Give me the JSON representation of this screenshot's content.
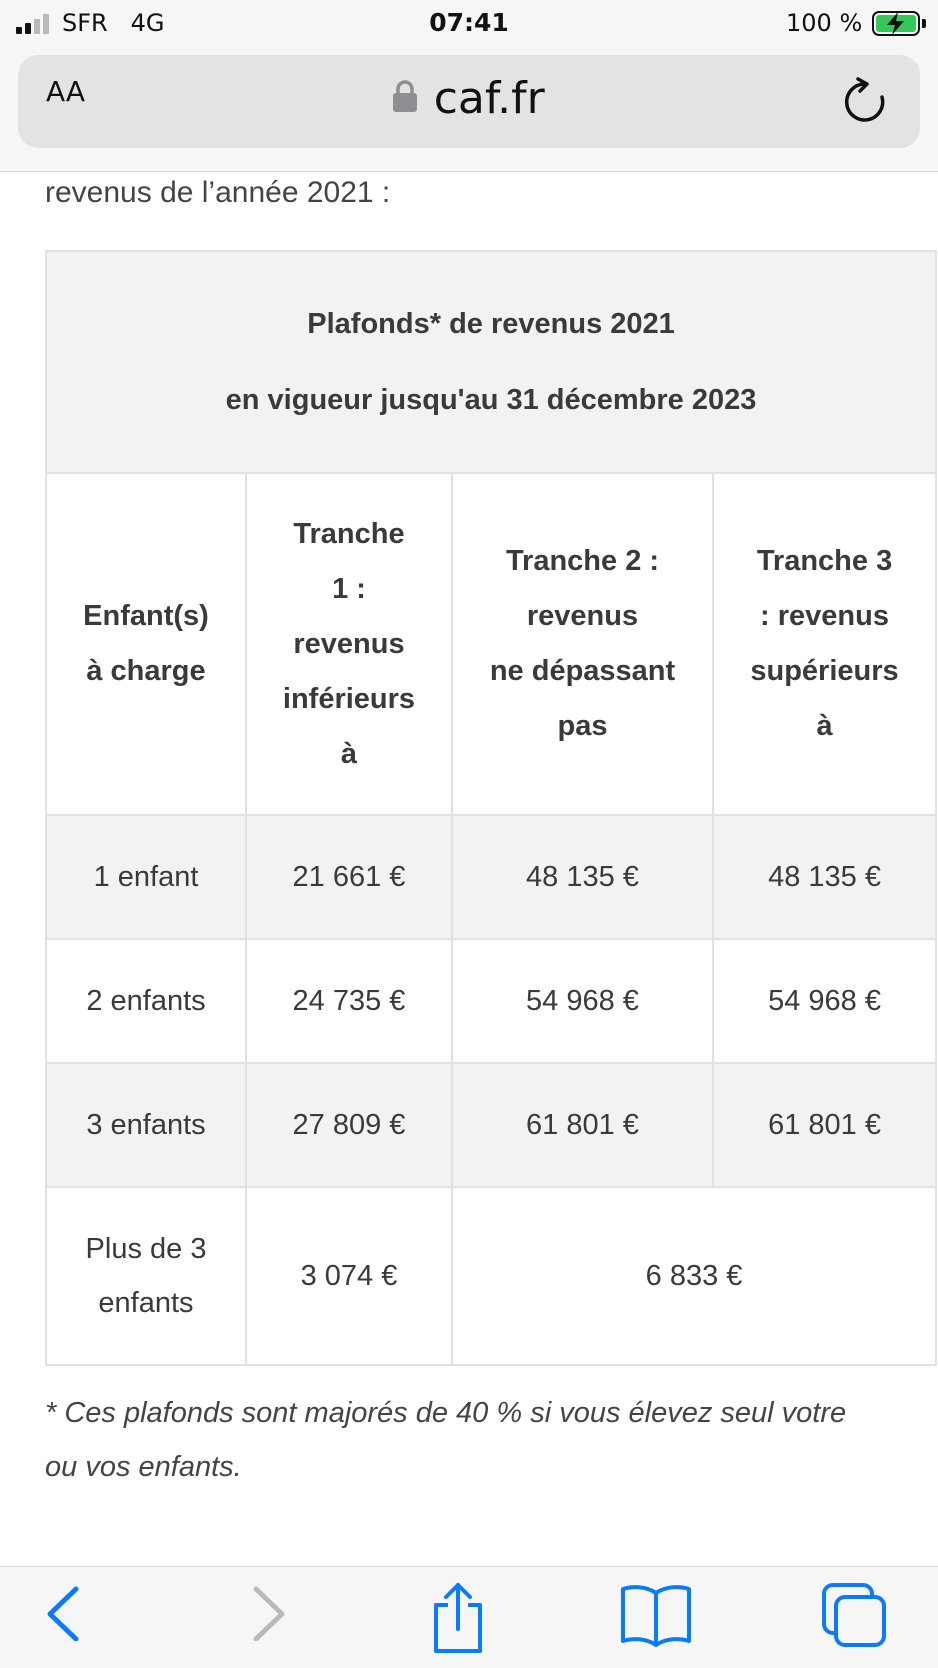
{
  "status_bar": {
    "carrier": "SFR",
    "network": "4G",
    "time": "07:41",
    "battery_text": "100 %",
    "signal_bars": 2,
    "battery_color": "#35c759"
  },
  "browser": {
    "text_size_label": "AA",
    "domain": "caf.fr",
    "icons": [
      "lock-icon",
      "reload-icon",
      "back-icon",
      "forward-icon",
      "share-icon",
      "bookmarks-icon",
      "tabs-icon"
    ],
    "accent_color": "#0a7aff"
  },
  "content": {
    "intro": "revenus de l’année 2021 :",
    "table": {
      "caption_line1": "Plafonds* de revenus 2021",
      "caption_line2": "en vigueur jusqu'au 31 décembre 2023",
      "headers": {
        "col0": [
          "Enfant(s)",
          "à charge"
        ],
        "col1": [
          "Tranche",
          "1 :",
          "revenus",
          "inférieurs",
          "à"
        ],
        "col2": [
          "Tranche 2 :",
          "revenus",
          "ne dépassant",
          "pas"
        ],
        "col3": [
          "Tranche 3",
          ": revenus",
          "supérieurs",
          "à"
        ]
      },
      "rows": [
        {
          "children": "1 enfant",
          "t1": "21 661 €",
          "t2": "48 135 €",
          "t3": "48 135 €"
        },
        {
          "children": "2 enfants",
          "t1": "24 735 €",
          "t2": "54 968 €",
          "t3": "54 968 €"
        },
        {
          "children": "3 enfants",
          "t1": "27 809 €",
          "t2": "61 801 €",
          "t3": "61 801 €"
        }
      ],
      "last_row": {
        "children_line1": "Plus de 3",
        "children_line2": "enfants",
        "t1": "3 074 €",
        "t2_t3": "6 833 €"
      }
    },
    "footnote_line1": "* Ces plafonds sont majorés de 40 % si vous élevez seul votre",
    "footnote_line2": "ou vos enfants."
  }
}
